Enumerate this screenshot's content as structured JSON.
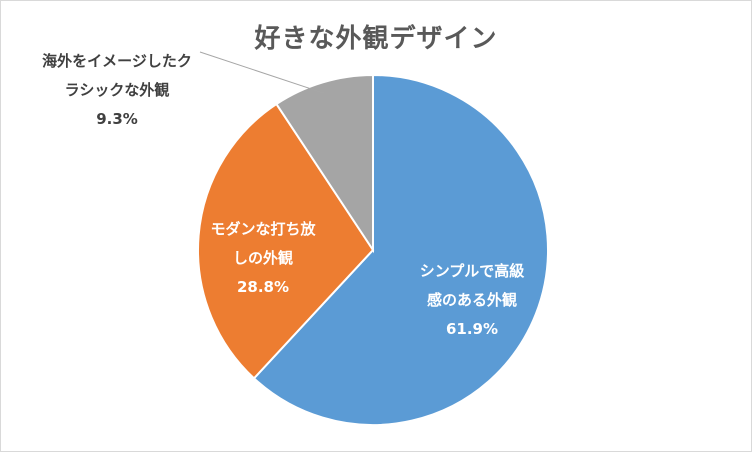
{
  "chart_data": {
    "type": "pie",
    "title": "好きな外観デザイン",
    "slices": [
      {
        "name_lines": [
          "シンプルで高級",
          "感のある外観"
        ],
        "value": 61.9,
        "value_label": "61.9%",
        "color": "#5b9bd5",
        "label_color": "#ffffff"
      },
      {
        "name_lines": [
          "モダンな打ち放",
          "しの外観"
        ],
        "value": 28.8,
        "value_label": "28.8%",
        "color": "#ed7d31",
        "label_color": "#ffffff"
      },
      {
        "name_lines": [
          "海外をイメージしたク",
          "ラシックな外観"
        ],
        "value": 9.3,
        "value_label": "9.3%",
        "color": "#a5a5a5",
        "label_color": "#404040"
      }
    ]
  }
}
